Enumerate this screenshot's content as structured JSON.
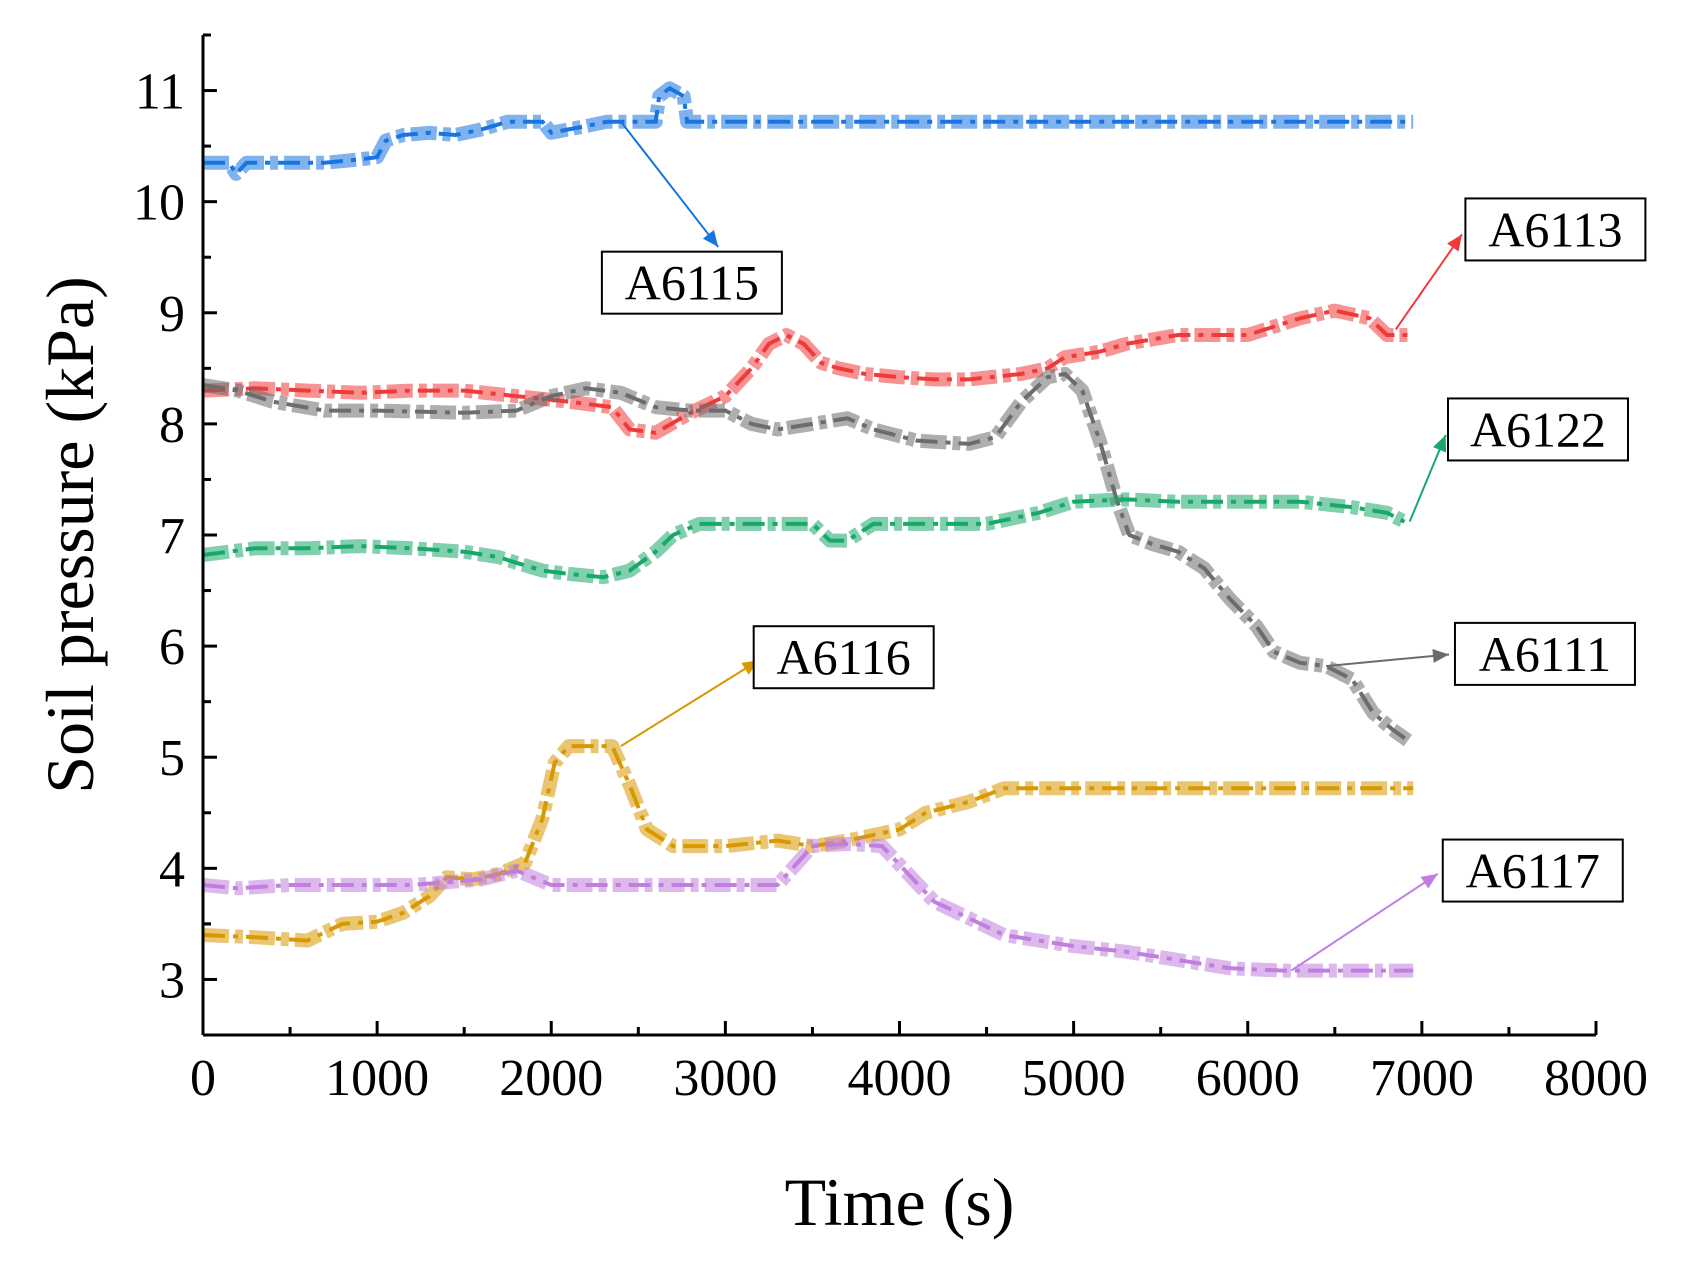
{
  "chart_data": {
    "type": "line",
    "xlabel": "Time (s)",
    "ylabel": "Soil pressure (kPa)",
    "xlim": [
      0,
      8000
    ],
    "ylim": [
      2.5,
      11.5
    ],
    "x_ticks": [
      0,
      1000,
      2000,
      3000,
      4000,
      5000,
      6000,
      7000,
      8000
    ],
    "y_ticks": [
      3,
      4,
      5,
      6,
      7,
      8,
      9,
      10,
      11
    ],
    "x_tick_labels": [
      "0",
      "1000",
      "2000",
      "3000",
      "4000",
      "5000",
      "6000",
      "7000",
      "8000"
    ],
    "y_tick_labels": [
      "3",
      "4",
      "5",
      "6",
      "7",
      "8",
      "9",
      "10",
      "11"
    ],
    "grid": false,
    "line_style": "dash-dot",
    "series": [
      {
        "name": "A6115",
        "color": "#1874e0",
        "points": [
          [
            0,
            10.35
          ],
          [
            150,
            10.35
          ],
          [
            190,
            10.25
          ],
          [
            250,
            10.35
          ],
          [
            700,
            10.35
          ],
          [
            900,
            10.38
          ],
          [
            1000,
            10.4
          ],
          [
            1050,
            10.55
          ],
          [
            1150,
            10.6
          ],
          [
            1300,
            10.62
          ],
          [
            1450,
            10.6
          ],
          [
            1600,
            10.65
          ],
          [
            1750,
            10.72
          ],
          [
            1950,
            10.72
          ],
          [
            2000,
            10.62
          ],
          [
            2100,
            10.65
          ],
          [
            2200,
            10.68
          ],
          [
            2320,
            10.72
          ],
          [
            2600,
            10.72
          ],
          [
            2620,
            10.95
          ],
          [
            2680,
            11.02
          ],
          [
            2760,
            10.95
          ],
          [
            2780,
            10.72
          ],
          [
            4000,
            10.72
          ],
          [
            5000,
            10.72
          ],
          [
            6000,
            10.72
          ],
          [
            6950,
            10.72
          ]
        ],
        "label_anchor": [
          2400,
          10.72
        ],
        "label_box": [
          2980,
          9.55
        ]
      },
      {
        "name": "A6113",
        "color": "#f03a3a",
        "points": [
          [
            0,
            8.3
          ],
          [
            300,
            8.32
          ],
          [
            600,
            8.3
          ],
          [
            900,
            8.28
          ],
          [
            1200,
            8.3
          ],
          [
            1500,
            8.3
          ],
          [
            1800,
            8.25
          ],
          [
            2100,
            8.2
          ],
          [
            2350,
            8.15
          ],
          [
            2450,
            7.95
          ],
          [
            2600,
            7.92
          ],
          [
            2800,
            8.1
          ],
          [
            3000,
            8.25
          ],
          [
            3150,
            8.5
          ],
          [
            3250,
            8.72
          ],
          [
            3350,
            8.8
          ],
          [
            3450,
            8.72
          ],
          [
            3550,
            8.55
          ],
          [
            3650,
            8.5
          ],
          [
            3800,
            8.45
          ],
          [
            4000,
            8.42
          ],
          [
            4200,
            8.4
          ],
          [
            4400,
            8.4
          ],
          [
            4700,
            8.45
          ],
          [
            4850,
            8.5
          ],
          [
            4950,
            8.6
          ],
          [
            5150,
            8.65
          ],
          [
            5300,
            8.72
          ],
          [
            5600,
            8.8
          ],
          [
            6000,
            8.8
          ],
          [
            6100,
            8.85
          ],
          [
            6300,
            8.95
          ],
          [
            6500,
            9.02
          ],
          [
            6700,
            8.95
          ],
          [
            6800,
            8.8
          ],
          [
            6950,
            8.8
          ]
        ],
        "label_anchor": [
          6850,
          8.85
        ],
        "label_box": [
          7250,
          9.75
        ]
      },
      {
        "name": "A6111",
        "color": "#6c6c6c",
        "points": [
          [
            0,
            8.35
          ],
          [
            200,
            8.3
          ],
          [
            400,
            8.2
          ],
          [
            700,
            8.12
          ],
          [
            1000,
            8.12
          ],
          [
            1500,
            8.1
          ],
          [
            1800,
            8.12
          ],
          [
            2000,
            8.25
          ],
          [
            2200,
            8.32
          ],
          [
            2400,
            8.28
          ],
          [
            2600,
            8.15
          ],
          [
            2800,
            8.12
          ],
          [
            3000,
            8.12
          ],
          [
            3150,
            8.0
          ],
          [
            3300,
            7.95
          ],
          [
            3500,
            8.0
          ],
          [
            3700,
            8.05
          ],
          [
            3850,
            7.95
          ],
          [
            4100,
            7.85
          ],
          [
            4400,
            7.82
          ],
          [
            4550,
            7.88
          ],
          [
            4700,
            8.2
          ],
          [
            4850,
            8.42
          ],
          [
            4950,
            8.45
          ],
          [
            5050,
            8.3
          ],
          [
            5150,
            7.85
          ],
          [
            5250,
            7.3
          ],
          [
            5320,
            7.0
          ],
          [
            5450,
            6.92
          ],
          [
            5600,
            6.85
          ],
          [
            5750,
            6.7
          ],
          [
            5900,
            6.42
          ],
          [
            6050,
            6.18
          ],
          [
            6150,
            5.95
          ],
          [
            6300,
            5.85
          ],
          [
            6450,
            5.82
          ],
          [
            6600,
            5.7
          ],
          [
            6720,
            5.4
          ],
          [
            6830,
            5.25
          ],
          [
            6920,
            5.15
          ]
        ],
        "label_anchor": [
          6450,
          5.82
        ],
        "label_box": [
          7190,
          5.93
        ]
      },
      {
        "name": "A6122",
        "color": "#17a86a",
        "points": [
          [
            0,
            6.82
          ],
          [
            300,
            6.88
          ],
          [
            600,
            6.88
          ],
          [
            900,
            6.9
          ],
          [
            1200,
            6.88
          ],
          [
            1500,
            6.85
          ],
          [
            1700,
            6.8
          ],
          [
            1800,
            6.75
          ],
          [
            1950,
            6.68
          ],
          [
            2100,
            6.65
          ],
          [
            2300,
            6.62
          ],
          [
            2450,
            6.68
          ],
          [
            2600,
            6.85
          ],
          [
            2700,
            7.0
          ],
          [
            2850,
            7.1
          ],
          [
            3200,
            7.1
          ],
          [
            3500,
            7.1
          ],
          [
            3600,
            6.95
          ],
          [
            3700,
            6.95
          ],
          [
            3850,
            7.1
          ],
          [
            4500,
            7.1
          ],
          [
            4800,
            7.2
          ],
          [
            5000,
            7.3
          ],
          [
            5300,
            7.32
          ],
          [
            5600,
            7.3
          ],
          [
            6000,
            7.3
          ],
          [
            6300,
            7.3
          ],
          [
            6600,
            7.25
          ],
          [
            6800,
            7.2
          ],
          [
            6900,
            7.12
          ]
        ],
        "label_anchor": [
          6930,
          7.12
        ],
        "label_box": [
          7150,
          7.95
        ]
      },
      {
        "name": "A6116",
        "color": "#d89800",
        "points": [
          [
            0,
            3.4
          ],
          [
            300,
            3.38
          ],
          [
            600,
            3.35
          ],
          [
            800,
            3.5
          ],
          [
            1000,
            3.52
          ],
          [
            1150,
            3.6
          ],
          [
            1300,
            3.75
          ],
          [
            1400,
            3.92
          ],
          [
            1550,
            3.9
          ],
          [
            1700,
            3.95
          ],
          [
            1850,
            4.05
          ],
          [
            1950,
            4.45
          ],
          [
            2020,
            4.95
          ],
          [
            2100,
            5.1
          ],
          [
            2350,
            5.1
          ],
          [
            2450,
            4.75
          ],
          [
            2550,
            4.35
          ],
          [
            2700,
            4.2
          ],
          [
            3000,
            4.2
          ],
          [
            3300,
            4.25
          ],
          [
            3500,
            4.2
          ],
          [
            3700,
            4.25
          ],
          [
            4000,
            4.35
          ],
          [
            4150,
            4.5
          ],
          [
            4400,
            4.6
          ],
          [
            4600,
            4.72
          ],
          [
            5000,
            4.72
          ],
          [
            5500,
            4.72
          ],
          [
            6000,
            4.72
          ],
          [
            6500,
            4.72
          ],
          [
            6950,
            4.72
          ]
        ],
        "label_anchor": [
          2400,
          5.1
        ],
        "label_box": [
          3220,
          5.9
        ]
      },
      {
        "name": "A6117",
        "color": "#c07ede",
        "points": [
          [
            0,
            3.85
          ],
          [
            200,
            3.82
          ],
          [
            500,
            3.85
          ],
          [
            800,
            3.85
          ],
          [
            1200,
            3.85
          ],
          [
            1600,
            3.9
          ],
          [
            1800,
            3.98
          ],
          [
            2000,
            3.85
          ],
          [
            2500,
            3.85
          ],
          [
            3000,
            3.85
          ],
          [
            3300,
            3.85
          ],
          [
            3500,
            4.2
          ],
          [
            3700,
            4.22
          ],
          [
            3900,
            4.2
          ],
          [
            4050,
            3.95
          ],
          [
            4200,
            3.7
          ],
          [
            4400,
            3.55
          ],
          [
            4600,
            3.4
          ],
          [
            4800,
            3.35
          ],
          [
            5000,
            3.3
          ],
          [
            5300,
            3.25
          ],
          [
            5500,
            3.2
          ],
          [
            5700,
            3.15
          ],
          [
            5900,
            3.1
          ],
          [
            6200,
            3.08
          ],
          [
            6600,
            3.08
          ],
          [
            6950,
            3.08
          ]
        ],
        "label_anchor": [
          6250,
          3.08
        ],
        "label_box": [
          7120,
          3.98
        ]
      }
    ]
  }
}
